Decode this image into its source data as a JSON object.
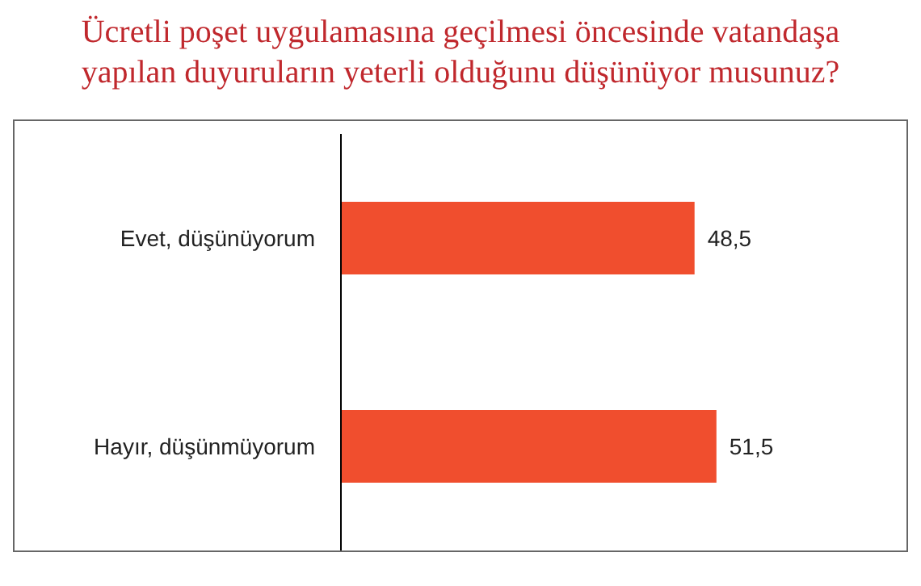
{
  "chart_data": {
    "type": "bar",
    "orientation": "horizontal",
    "title": "Ücretli poşet uygulamasına geçilmesi öncesinde vatandaşa yapılan duyuruların yeterli olduğunu düşünüyor musunuz?",
    "categories": [
      "Evet, düşünüyorum",
      "Hayır, düşünmüyorum"
    ],
    "values": [
      48.5,
      51.5
    ],
    "value_labels": [
      "48,5",
      "51,5"
    ],
    "color": "#f04e2e"
  }
}
